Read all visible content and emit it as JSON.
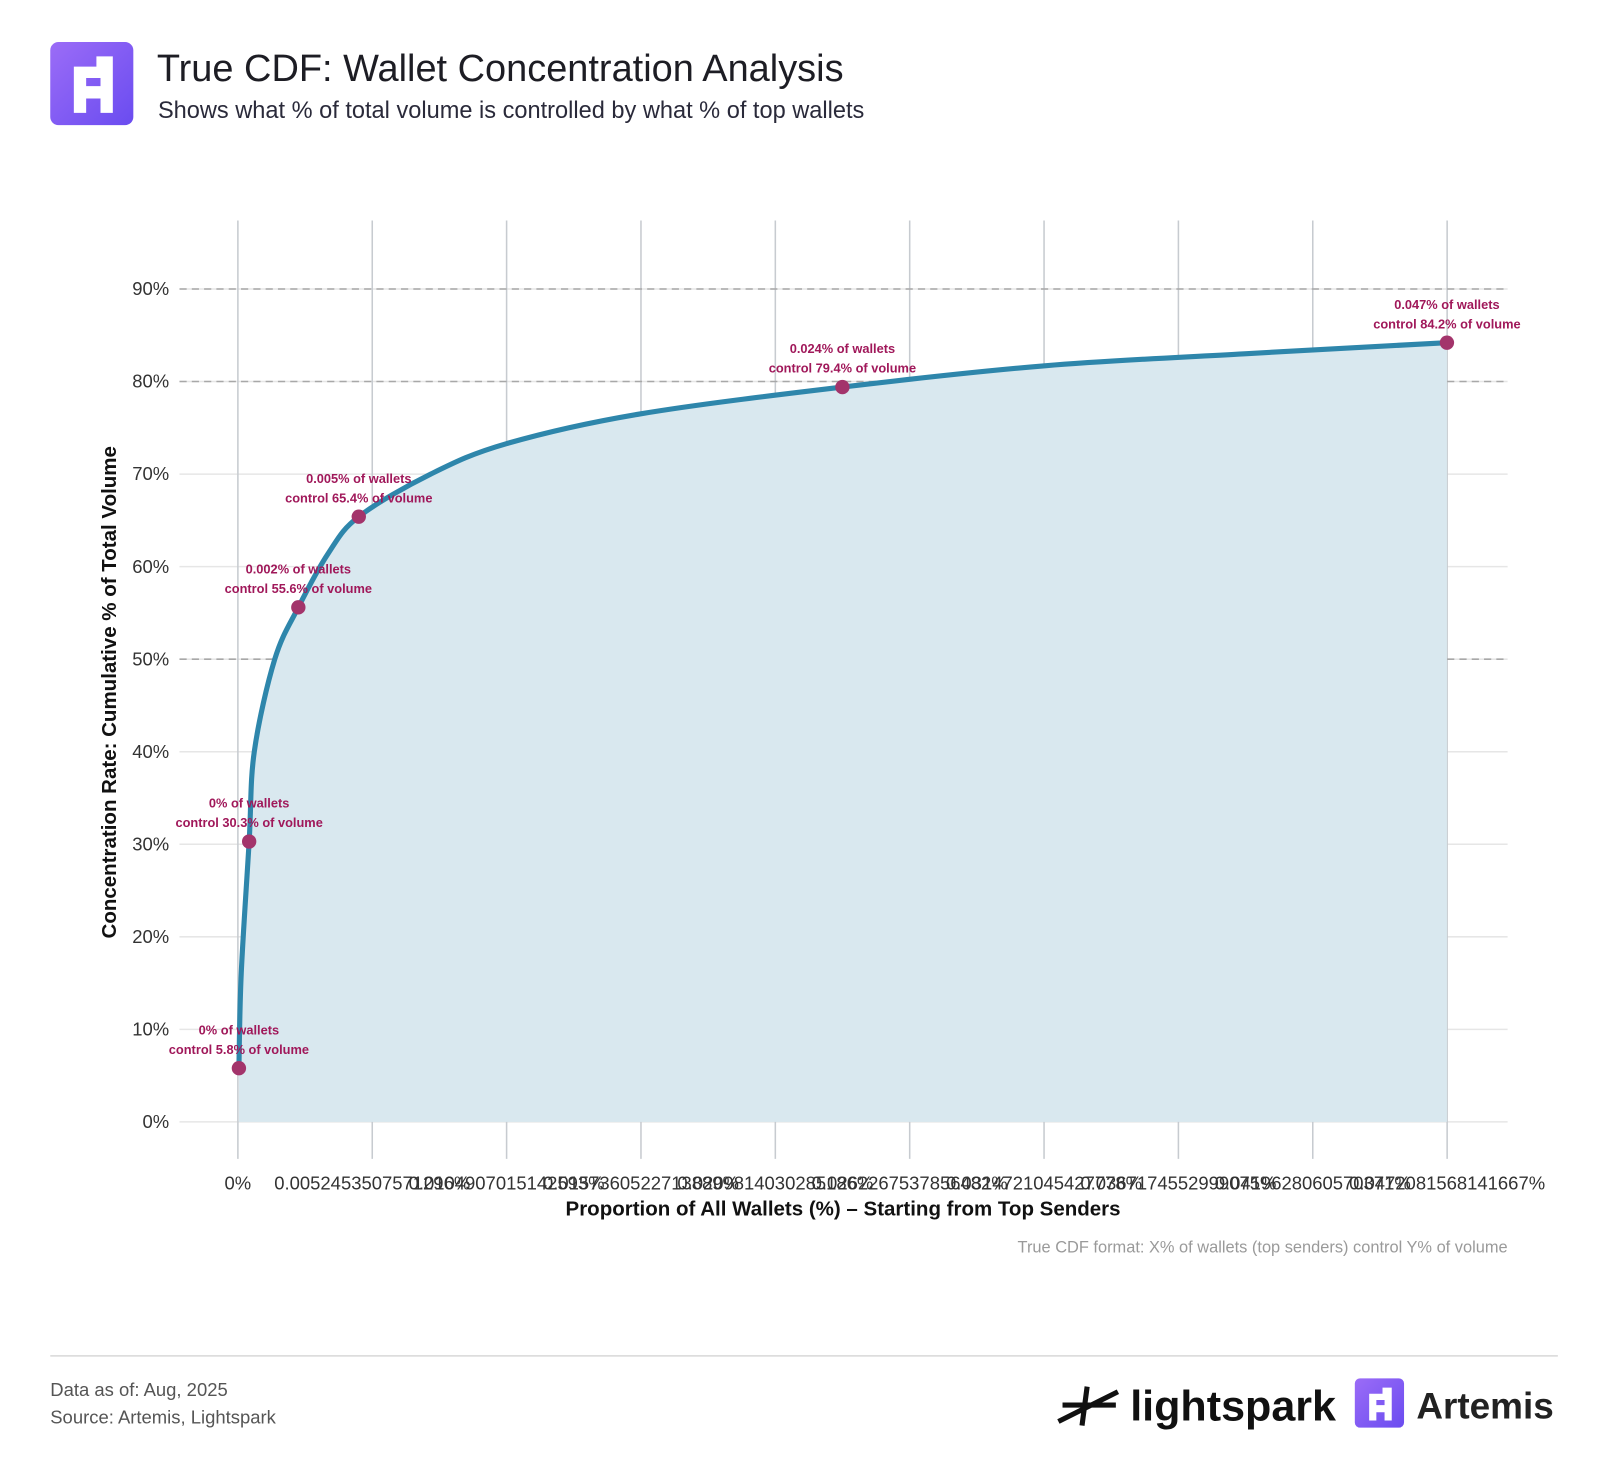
{
  "header": {
    "title": "True CDF: Wallet Concentration Analysis",
    "subtitle": "Shows what % of total volume is controlled by what % of top wallets"
  },
  "chart_data": {
    "type": "area",
    "x_label": "Proportion of All Wallets (%) – Starting from Top Senders",
    "y_label": "Concentration Rate: Cumulative % of Total Volume",
    "note": "True CDF format: X% of wallets (top senders) control Y% of volume",
    "x": [
      4e-05,
      0.00013,
      0.00044,
      0.00064,
      0.00144,
      0.00236,
      0.00352,
      0.00472,
      0.00753,
      0.0105,
      0.0157,
      0.0236,
      0.0315,
      0.0393,
      0.0472
    ],
    "values": [
      5.8,
      16,
      30.3,
      40,
      50,
      55.6,
      61.4,
      65.4,
      70,
      73.3,
      76.5,
      79.4,
      81.7,
      83,
      84.2
    ],
    "color": "#2e86ab",
    "area_color": "#d9e8ef",
    "marker_color": "#a3346b",
    "annotation_color": "#a0185a",
    "annotations": [
      {
        "x": 4e-05,
        "y": 5.8,
        "text": [
          "0% of wallets",
          "control 5.8% of volume"
        ]
      },
      {
        "x": 0.00044,
        "y": 30.3,
        "text": [
          "0% of wallets",
          "control 30.3% of volume"
        ]
      },
      {
        "x": 0.00236,
        "y": 55.6,
        "text": [
          "0.002% of wallets",
          "control 55.6% of volume"
        ]
      },
      {
        "x": 0.00472,
        "y": 65.4,
        "text": [
          "0.005% of wallets",
          "control 65.4% of volume"
        ]
      },
      {
        "x": 0.0236,
        "y": 79.4,
        "text": [
          "0.024% of wallets",
          "control 79.4% of volume"
        ]
      },
      {
        "x": 0.0472,
        "y": 84.2,
        "text": [
          "0.047% of wallets",
          "control 84.2% of volume"
        ]
      }
    ],
    "xlim": [
      -0.00228,
      0.04957
    ],
    "ylim": [
      -4,
      97.4
    ],
    "xticks": [
      {
        "value": 0,
        "label": "0%"
      },
      {
        "value": 0.0052453507571296,
        "label": "0.0052453507571296%"
      },
      {
        "value": 0.0104907015142593,
        "label": "0.0104907015142593%"
      },
      {
        "value": 0.0157360522713889,
        "label": "0.0157360522713889%"
      },
      {
        "value": 0.0209814030285186,
        "label": "0.0209814030285186%"
      },
      {
        "value": 0.0262267537856482,
        "label": "0.0262267537856482%"
      },
      {
        "value": 0.0314721045427778,
        "label": "0.0314721045427778%"
      },
      {
        "value": 0.0367174552999075,
        "label": "0.0367174552999075%"
      },
      {
        "value": 0.0419628060570371,
        "label": "0.0419628060570371%"
      },
      {
        "value": 0.0472081568141667,
        "label": "0.0472081568141667%"
      }
    ],
    "yticks": [
      {
        "value": 0,
        "label": "0%"
      },
      {
        "value": 10,
        "label": "10%"
      },
      {
        "value": 20,
        "label": "20%"
      },
      {
        "value": 30,
        "label": "30%"
      },
      {
        "value": 40,
        "label": "40%"
      },
      {
        "value": 50,
        "label": "50%"
      },
      {
        "value": 60,
        "label": "60%"
      },
      {
        "value": 70,
        "label": "70%"
      },
      {
        "value": 80,
        "label": "80%"
      },
      {
        "value": 90,
        "label": "90%"
      }
    ],
    "reference_lines": [
      50,
      80,
      90
    ],
    "grid": true
  },
  "footer": {
    "date": "Data as of: Aug, 2025",
    "source": "Source: Artemis, Lightspark",
    "brands": [
      "lightspark",
      "Artemis"
    ]
  }
}
